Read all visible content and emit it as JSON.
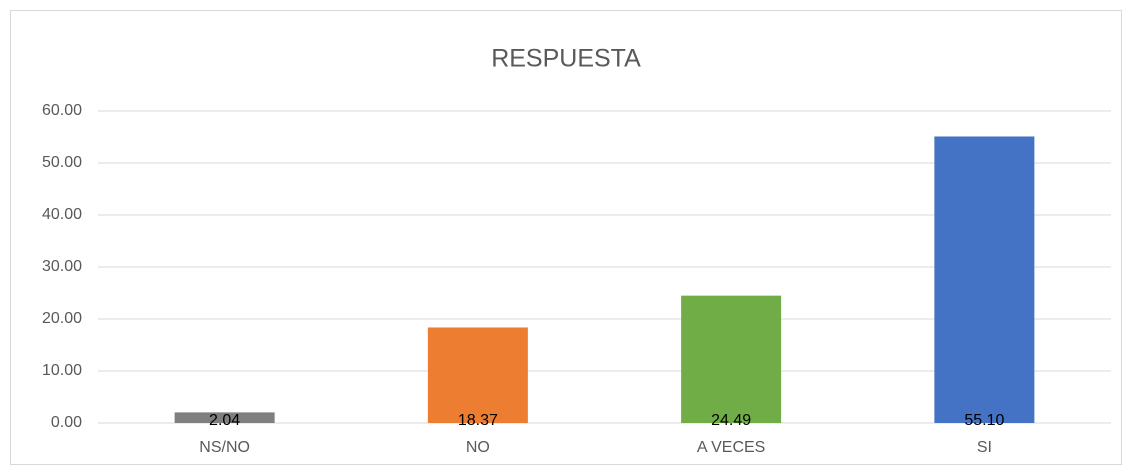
{
  "chart_data": {
    "type": "bar",
    "title": "RESPUESTA",
    "categories": [
      "NS/NO",
      "NO",
      "A VECES",
      "SI"
    ],
    "values": [
      2.04,
      18.37,
      24.49,
      55.1
    ],
    "value_labels": [
      "2.04",
      "18.37",
      "24.49",
      "55.10"
    ],
    "colors": [
      "#7f7f7f",
      "#ed7d31",
      "#70ad47",
      "#4472c4"
    ],
    "ylim": [
      0,
      60
    ],
    "yticks": [
      {
        "value": 0,
        "label": "0.00"
      },
      {
        "value": 10,
        "label": "10.00"
      },
      {
        "value": 20,
        "label": "20.00"
      },
      {
        "value": 30,
        "label": "30.00"
      },
      {
        "value": 40,
        "label": "40.00"
      },
      {
        "value": 50,
        "label": "50.00"
      },
      {
        "value": 60,
        "label": "60.00"
      }
    ],
    "grid": true
  }
}
